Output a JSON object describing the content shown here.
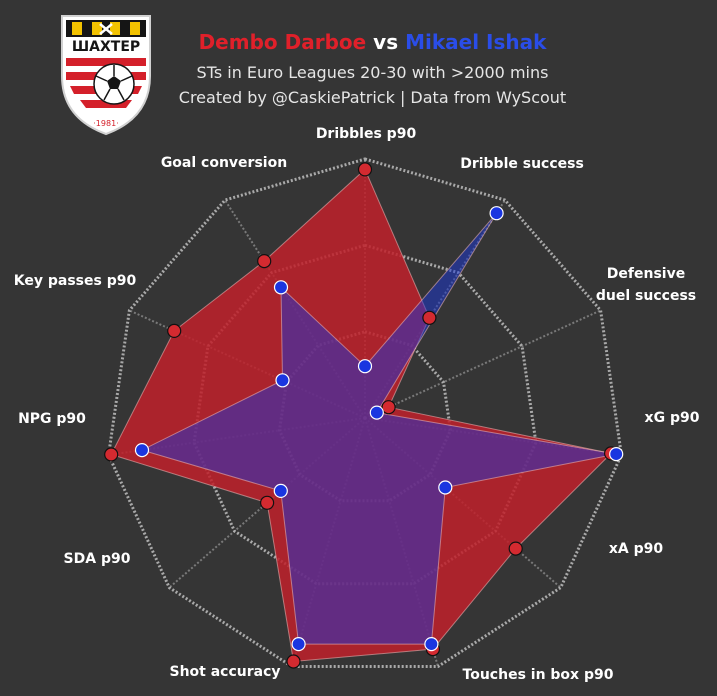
{
  "header": {
    "player1": "Dembo Darboe",
    "vs": "vs",
    "player2": "Mikael Ishak",
    "subtitle1": "STs in Euro Leagues 20-30 with >2000 mins",
    "subtitle2": "Created by @CaskiePatrick | Data from WyScout"
  },
  "logo": {
    "text": "ШАХТЕР",
    "year": "·1981·"
  },
  "colors": {
    "background": "#353535",
    "player1": "#c0202a",
    "player2": "#1a35d8",
    "grid": "#bdbdbd"
  },
  "chart_data": {
    "type": "radar",
    "axes": [
      "Dribbles p90",
      "Dribble success",
      "Defensive\nduel success",
      "xG p90",
      "xA p90",
      "Touches in box p90",
      "Shot accuracy",
      "SDA p90",
      "NPG p90",
      "Key passes p90",
      "Goal conversion"
    ],
    "scale": [
      0,
      100
    ],
    "rings": 3,
    "series": [
      {
        "name": "Dembo Darboe",
        "values": [
          96,
          46,
          10,
          96,
          77,
          93,
          98,
          50,
          99,
          81,
          72
        ]
      },
      {
        "name": "Mikael Ishak",
        "values": [
          20,
          94,
          5,
          98,
          41,
          91,
          91,
          43,
          87,
          35,
          60
        ]
      }
    ]
  }
}
